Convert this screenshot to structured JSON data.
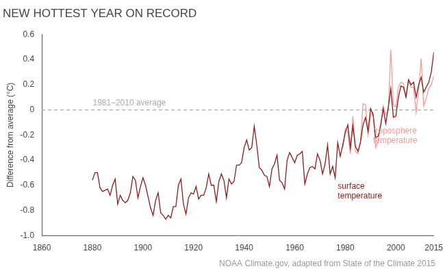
{
  "chart_data": {
    "type": "line",
    "title": "NEW HOTTEST YEAR ON RECORD",
    "y_label": "Difference from average (°C)",
    "source": "NOAA Climate.gov, adapted from State of the Climate 2015",
    "reference_line": {
      "value": 0,
      "label": "1981–2010 average",
      "color": "#aaaaaa",
      "line_style": "dashed"
    },
    "grid": false,
    "legend": false,
    "xlim": [
      1860,
      2015
    ],
    "xticks": [
      1860,
      1880,
      1900,
      1920,
      1940,
      1960,
      1980,
      2000,
      2015
    ],
    "ylim": [
      -1,
      0.6
    ],
    "yticks": [
      {
        "value": -1,
        "label": "-1.0"
      },
      -0.8,
      -0.6,
      -0.4,
      -0.2,
      0,
      0.2,
      0.4,
      0.6
    ],
    "x": [
      1880,
      1881,
      1882,
      1883,
      1884,
      1885,
      1886,
      1887,
      1888,
      1889,
      1890,
      1891,
      1892,
      1893,
      1894,
      1895,
      1896,
      1897,
      1898,
      1899,
      1900,
      1901,
      1902,
      1903,
      1904,
      1905,
      1906,
      1907,
      1908,
      1909,
      1910,
      1911,
      1912,
      1913,
      1914,
      1915,
      1916,
      1917,
      1918,
      1919,
      1920,
      1921,
      1922,
      1923,
      1924,
      1925,
      1926,
      1927,
      1928,
      1929,
      1930,
      1931,
      1932,
      1933,
      1934,
      1935,
      1936,
      1937,
      1938,
      1939,
      1940,
      1941,
      1942,
      1943,
      1944,
      1945,
      1946,
      1947,
      1948,
      1949,
      1950,
      1951,
      1952,
      1953,
      1954,
      1955,
      1956,
      1957,
      1958,
      1959,
      1960,
      1961,
      1962,
      1963,
      1964,
      1965,
      1966,
      1967,
      1968,
      1969,
      1970,
      1971,
      1972,
      1973,
      1974,
      1975,
      1976,
      1977,
      1978,
      1979,
      1980,
      1981,
      1982,
      1983,
      1984,
      1985,
      1986,
      1987,
      1988,
      1989,
      1990,
      1991,
      1992,
      1993,
      1994,
      1995,
      1996,
      1997,
      1998,
      1999,
      2000,
      2001,
      2002,
      2003,
      2004,
      2005,
      2006,
      2007,
      2008,
      2009,
      2010,
      2011,
      2012,
      2013,
      2014,
      2015
    ],
    "series": [
      {
        "name": "surface temperature",
        "color": "#8c1c1c",
        "line_style": "solid",
        "values": [
          -0.56,
          -0.5,
          -0.5,
          -0.62,
          -0.65,
          -0.64,
          -0.63,
          -0.68,
          -0.6,
          -0.55,
          -0.75,
          -0.68,
          -0.72,
          -0.74,
          -0.72,
          -0.66,
          -0.53,
          -0.56,
          -0.7,
          -0.61,
          -0.54,
          -0.6,
          -0.69,
          -0.78,
          -0.84,
          -0.72,
          -0.66,
          -0.82,
          -0.84,
          -0.87,
          -0.84,
          -0.86,
          -0.77,
          -0.77,
          -0.6,
          -0.55,
          -0.75,
          -0.83,
          -0.7,
          -0.66,
          -0.67,
          -0.61,
          -0.71,
          -0.68,
          -0.68,
          -0.62,
          -0.51,
          -0.6,
          -0.6,
          -0.73,
          -0.57,
          -0.51,
          -0.56,
          -0.7,
          -0.55,
          -0.59,
          -0.57,
          -0.44,
          -0.44,
          -0.42,
          -0.3,
          -0.24,
          -0.32,
          -0.3,
          -0.13,
          -0.28,
          -0.46,
          -0.48,
          -0.52,
          -0.53,
          -0.61,
          -0.47,
          -0.43,
          -0.36,
          -0.56,
          -0.58,
          -0.63,
          -0.4,
          -0.34,
          -0.38,
          -0.42,
          -0.36,
          -0.35,
          -0.33,
          -0.59,
          -0.51,
          -0.46,
          -0.45,
          -0.47,
          -0.35,
          -0.4,
          -0.51,
          -0.43,
          -0.28,
          -0.51,
          -0.45,
          -0.54,
          -0.26,
          -0.37,
          -0.28,
          -0.18,
          -0.12,
          -0.3,
          -0.13,
          -0.29,
          -0.33,
          -0.26,
          -0.12,
          -0.06,
          -0.17,
          0.01,
          -0.04,
          -0.22,
          -0.21,
          -0.12,
          0.01,
          -0.11,
          0.02,
          0.17,
          -0.06,
          -0.05,
          0.1,
          0.19,
          0.18,
          0.1,
          0.24,
          0.2,
          0.22,
          0.1,
          0.2,
          0.26,
          0.14,
          0.18,
          0.22,
          0.3,
          0.46
        ]
      },
      {
        "name": "troposphere temperature",
        "color": "#f29c9a",
        "line_style": "solid",
        "values": [
          null,
          null,
          null,
          null,
          null,
          null,
          null,
          null,
          null,
          null,
          null,
          null,
          null,
          null,
          null,
          null,
          null,
          null,
          null,
          null,
          null,
          null,
          null,
          null,
          null,
          null,
          null,
          null,
          null,
          null,
          null,
          null,
          null,
          null,
          null,
          null,
          null,
          null,
          null,
          null,
          null,
          null,
          null,
          null,
          null,
          null,
          null,
          null,
          null,
          null,
          null,
          null,
          null,
          null,
          null,
          null,
          null,
          null,
          null,
          null,
          null,
          null,
          null,
          null,
          null,
          null,
          null,
          null,
          null,
          null,
          null,
          null,
          null,
          null,
          null,
          null,
          null,
          null,
          null,
          null,
          null,
          null,
          null,
          null,
          null,
          null,
          null,
          null,
          null,
          null,
          null,
          null,
          null,
          null,
          null,
          null,
          null,
          null,
          null,
          -0.3,
          -0.15,
          -0.18,
          -0.35,
          -0.05,
          -0.33,
          -0.35,
          -0.25,
          0.05,
          0.04,
          -0.2,
          -0.05,
          -0.02,
          -0.3,
          -0.25,
          -0.12,
          0.03,
          -0.04,
          0.0,
          0.48,
          0.04,
          0.02,
          0.18,
          0.22,
          0.21,
          0.11,
          0.23,
          0.18,
          0.18,
          -0.02,
          0.16,
          0.41,
          0.03,
          0.09,
          0.17,
          0.2,
          0.27
        ]
      }
    ]
  }
}
